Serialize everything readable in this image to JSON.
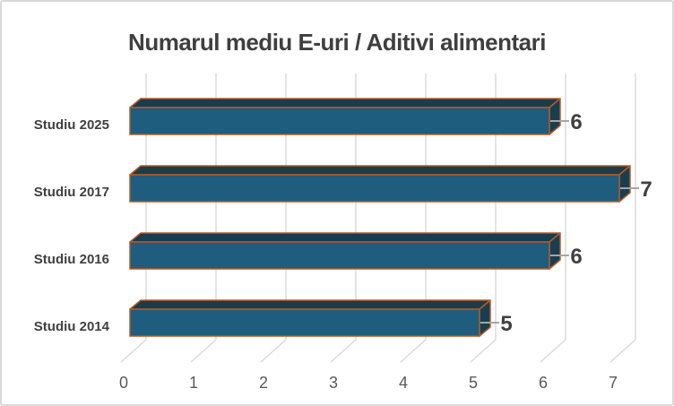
{
  "chart_data": {
    "type": "bar",
    "orientation": "horizontal",
    "style_3d": true,
    "title": "Numarul mediu E-uri / Aditivi alimentari",
    "categories": [
      "Studiu 2025",
      "Studiu 2017",
      "Studiu 2016",
      "Studiu 2014"
    ],
    "values": [
      6,
      7,
      6,
      5
    ],
    "data_labels": [
      "6",
      "7",
      "6",
      "5"
    ],
    "x_ticks": [
      "0",
      "1",
      "2",
      "3",
      "4",
      "5",
      "6",
      "7"
    ],
    "xlim": [
      0,
      7
    ],
    "xlabel": "",
    "ylabel": "",
    "grid": true,
    "legend": false,
    "colors": {
      "bar_front": "#1E5D7D",
      "bar_top": "#1A3C4C",
      "bar_side": "#173F52",
      "bar_outline": "#B65A23",
      "gridline": "#D9D9D9",
      "leader_line": "#A6A6A6",
      "title_text": "#3F3F3F",
      "category_text": "#404040",
      "data_label_text": "#404040",
      "tick_text": "#595959",
      "border": "#D9D9D9",
      "background": "#FFFFFF"
    }
  }
}
